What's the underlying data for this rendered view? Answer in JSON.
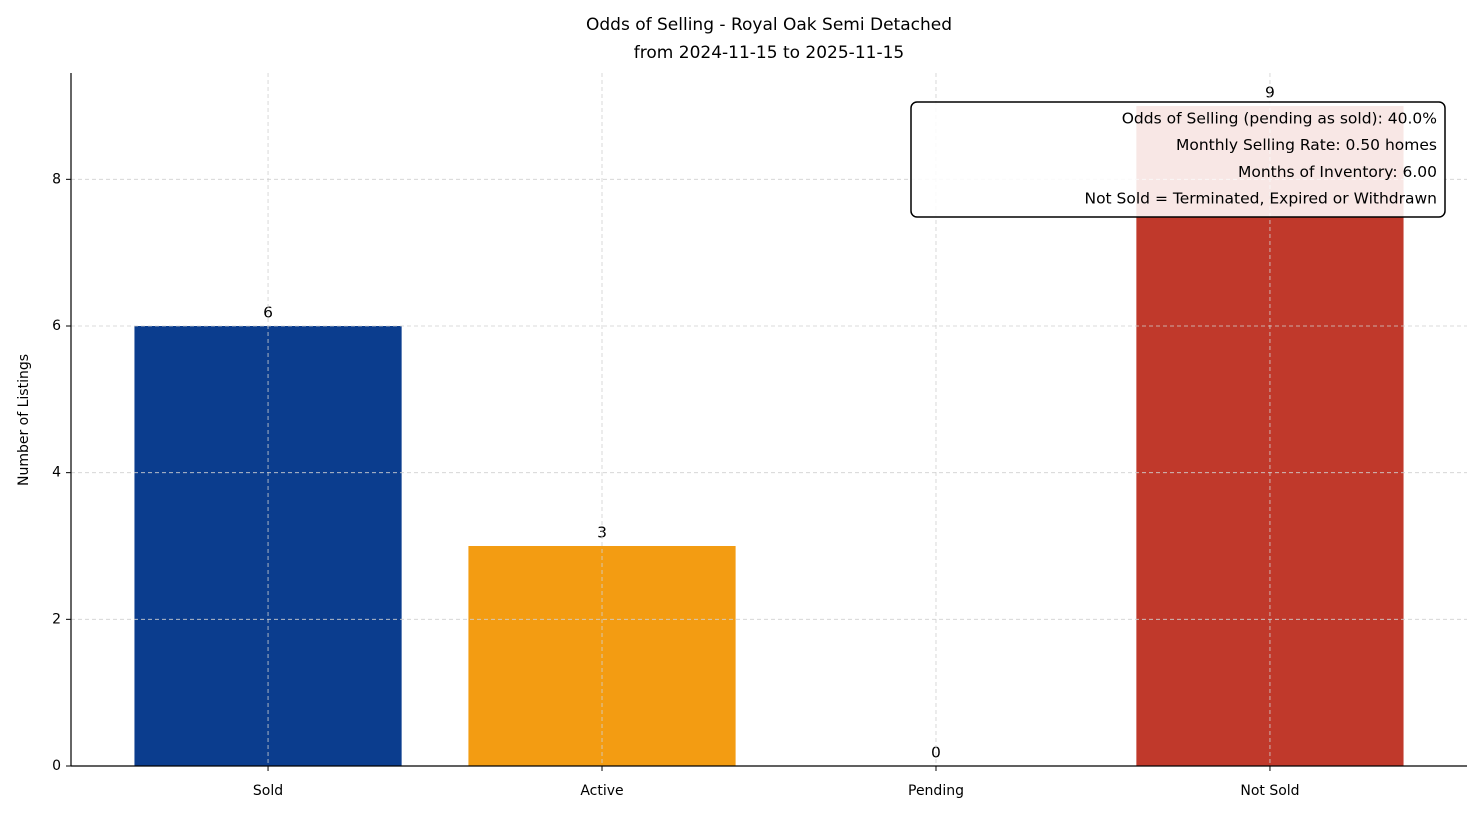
{
  "chart_data": {
    "type": "bar",
    "title": "Odds of Selling - Royal Oak Semi Detached",
    "subtitle": "from 2024-11-15 to 2025-11-15",
    "y_label": "Number of Listings",
    "categories": [
      "Sold",
      "Active",
      "Pending",
      "Not Sold"
    ],
    "values": [
      6,
      3,
      0,
      9
    ],
    "colors": [
      "#0b3d8e",
      "#f39c12",
      "#7f8c8d",
      "#c0392b"
    ],
    "ylim": [
      0,
      9.45
    ],
    "yticks": [
      0,
      2,
      4,
      6,
      8
    ],
    "grid": true,
    "annotation": [
      "Odds of Selling (pending as sold): 40.0%",
      "Monthly Selling Rate: 0.50 homes",
      "Months of Inventory: 6.00",
      "Not Sold = Terminated, Expired or Withdrawn"
    ]
  }
}
